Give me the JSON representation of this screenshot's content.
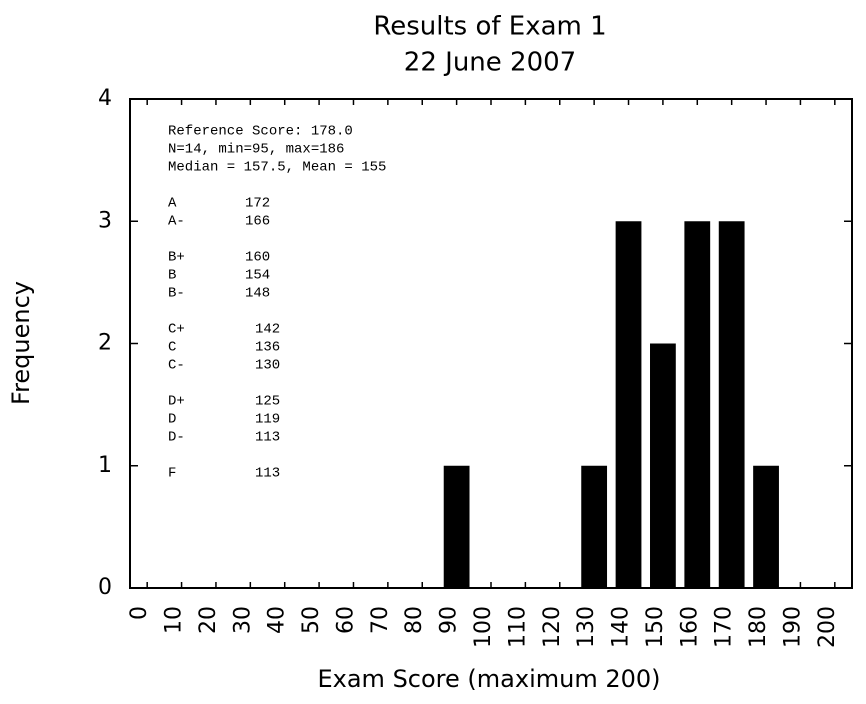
{
  "chart_data": {
    "type": "bar",
    "title": "Results of Exam 1",
    "subtitle": "22 June 2007",
    "xlabel": "Exam Score (maximum 200)",
    "ylabel": "Frequency",
    "x": [
      90,
      130,
      140,
      150,
      160,
      170,
      180
    ],
    "values": [
      1,
      1,
      3,
      2,
      3,
      3,
      1
    ],
    "color": "#000000",
    "xlim": [
      -5,
      205
    ],
    "xticks": [
      0,
      10,
      20,
      30,
      40,
      50,
      60,
      70,
      80,
      90,
      100,
      110,
      120,
      130,
      140,
      150,
      160,
      170,
      180,
      190,
      200
    ],
    "ylim": [
      0,
      4
    ],
    "yticks": [
      0,
      1,
      2,
      3,
      4
    ],
    "annotations": {
      "summary": [
        "Reference Score: 178.0",
        "N=14, min=95, max=186",
        "Median = 157.5, Mean = 155"
      ],
      "grades": [
        [
          [
            "A",
            "172"
          ],
          [
            "A-",
            "166"
          ]
        ],
        [
          [
            "B+",
            "160"
          ],
          [
            "B",
            "154"
          ],
          [
            "B-",
            "148"
          ]
        ],
        [
          [
            "C+",
            "142"
          ],
          [
            "C",
            "136"
          ],
          [
            "C-",
            "130"
          ]
        ],
        [
          [
            "D+",
            "125"
          ],
          [
            "D",
            "119"
          ],
          [
            "D-",
            "113"
          ]
        ],
        [
          [
            "F",
            "113"
          ]
        ]
      ]
    }
  }
}
